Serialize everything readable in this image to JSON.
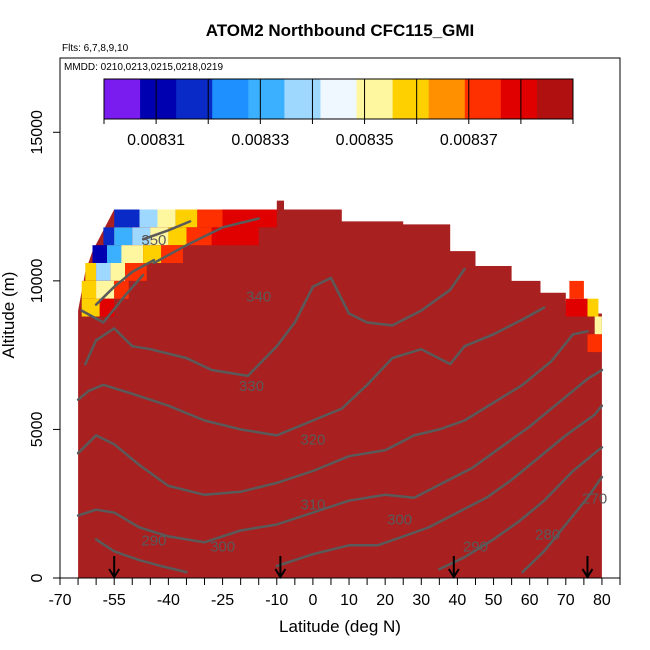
{
  "chart_data": {
    "type": "heatmap",
    "title": "ATOM2 Northbound CFC115_GMI",
    "flights_note": "Flts: 6,7,8,9,10",
    "dates_note": "MMDD: 0210,0213,0215,0218,0219",
    "xlabel": "Latitude (deg N)",
    "ylabel": "Altitude (m)",
    "xlim": [
      -70,
      85
    ],
    "ylim": [
      0,
      17500
    ],
    "x_ticks_major": [
      -70,
      -55,
      -40,
      -25,
      -10,
      0,
      10,
      20,
      30,
      40,
      50,
      60,
      70,
      80
    ],
    "x_tick_labels": [
      "-70",
      "-55",
      "-40",
      "-25",
      "-10",
      "0",
      "10",
      "20",
      "30",
      "40",
      "50",
      "60",
      "70",
      "80"
    ],
    "x_ticks_minor": [
      -65,
      -60,
      -50,
      -45,
      -35,
      -30,
      -20,
      -15,
      -5,
      5,
      15,
      25,
      35,
      45,
      55,
      65,
      75,
      85
    ],
    "y_ticks": [
      0,
      5000,
      10000,
      15000
    ],
    "y_tick_labels": [
      "0",
      "5000",
      "10000",
      "15000"
    ],
    "colorbar": {
      "range": [
        0.0083,
        0.00839
      ],
      "tick_values": [
        0.00831,
        0.00833,
        0.00835,
        0.00837
      ],
      "tick_labels": [
        "0.00831",
        "0.00833",
        "0.00835",
        "0.00837"
      ],
      "colors": [
        "#7a1cf0",
        "#0000b0",
        "#0a2ac8",
        "#1e90ff",
        "#3ab0ff",
        "#9fd8ff",
        "#f0f8ff",
        "#fff7a0",
        "#ffd000",
        "#ff9000",
        "#ff3000",
        "#e00000",
        "#b01010"
      ]
    },
    "field_color": "#a82020",
    "sounding_markers_lat": [
      -55,
      -9,
      39,
      76
    ],
    "contour_labels": [
      {
        "text": "350",
        "lat": -44,
        "alt": 11200
      },
      {
        "text": "340",
        "lat": -15,
        "alt": 9300
      },
      {
        "text": "330",
        "lat": -17,
        "alt": 6300
      },
      {
        "text": "320",
        "lat": 0,
        "alt": 4500
      },
      {
        "text": "310",
        "lat": 0,
        "alt": 2300
      },
      {
        "text": "300",
        "lat": 24,
        "alt": 1800
      },
      {
        "text": "300",
        "lat": -25,
        "alt": 900
      },
      {
        "text": "290",
        "lat": -44,
        "alt": 1100
      },
      {
        "text": "290",
        "lat": 45,
        "alt": 900
      },
      {
        "text": "280",
        "lat": 65,
        "alt": 1300
      },
      {
        "text": "270",
        "lat": 78,
        "alt": 2500
      }
    ],
    "colored_cells": [
      {
        "lat0": -55,
        "lat1": -48,
        "alt0": 11800,
        "alt1": 12400,
        "v": 0.00832
      },
      {
        "lat0": -48,
        "lat1": -43,
        "alt0": 11800,
        "alt1": 12400,
        "v": 0.00834
      },
      {
        "lat0": -43,
        "lat1": -38,
        "alt0": 11800,
        "alt1": 12400,
        "v": 0.00835
      },
      {
        "lat0": -38,
        "lat1": -32,
        "alt0": 11800,
        "alt1": 12400,
        "v": 0.00836
      },
      {
        "lat0": -32,
        "lat1": -25,
        "alt0": 11800,
        "alt1": 12400,
        "v": 0.00837
      },
      {
        "lat0": -58,
        "lat1": -55,
        "alt0": 11200,
        "alt1": 11800,
        "v": 0.00832
      },
      {
        "lat0": -55,
        "lat1": -50,
        "alt0": 11200,
        "alt1": 11800,
        "v": 0.00833
      },
      {
        "lat0": -50,
        "lat1": -45,
        "alt0": 11200,
        "alt1": 11800,
        "v": 0.00834
      },
      {
        "lat0": -45,
        "lat1": -40,
        "alt0": 11200,
        "alt1": 11800,
        "v": 0.00835
      },
      {
        "lat0": -40,
        "lat1": -35,
        "alt0": 11200,
        "alt1": 11800,
        "v": 0.00836
      },
      {
        "lat0": -35,
        "lat1": -28,
        "alt0": 11200,
        "alt1": 11800,
        "v": 0.00837
      },
      {
        "lat0": -61,
        "lat1": -57,
        "alt0": 10600,
        "alt1": 11200,
        "v": 0.00831
      },
      {
        "lat0": -57,
        "lat1": -53,
        "alt0": 10600,
        "alt1": 11200,
        "v": 0.00833
      },
      {
        "lat0": -53,
        "lat1": -47,
        "alt0": 10600,
        "alt1": 11200,
        "v": 0.00835
      },
      {
        "lat0": -47,
        "lat1": -42,
        "alt0": 10600,
        "alt1": 11200,
        "v": 0.00836
      },
      {
        "lat0": -42,
        "lat1": -36,
        "alt0": 10600,
        "alt1": 11200,
        "v": 0.00837
      },
      {
        "lat0": -63,
        "lat1": -60,
        "alt0": 10000,
        "alt1": 10600,
        "v": 0.00836
      },
      {
        "lat0": -60,
        "lat1": -56,
        "alt0": 10000,
        "alt1": 10600,
        "v": 0.00834
      },
      {
        "lat0": -56,
        "lat1": -52,
        "alt0": 10000,
        "alt1": 10600,
        "v": 0.00835
      },
      {
        "lat0": -52,
        "lat1": -46,
        "alt0": 10000,
        "alt1": 10600,
        "v": 0.00837
      },
      {
        "lat0": -64,
        "lat1": -60,
        "alt0": 9400,
        "alt1": 10000,
        "v": 0.00836
      },
      {
        "lat0": -60,
        "lat1": -55,
        "alt0": 9400,
        "alt1": 10000,
        "v": 0.00835
      },
      {
        "lat0": -55,
        "lat1": -51,
        "alt0": 9400,
        "alt1": 10000,
        "v": 0.00837
      },
      {
        "lat0": -64,
        "lat1": -59,
        "alt0": 8800,
        "alt1": 9400,
        "v": 0.00836
      },
      {
        "lat0": -59,
        "lat1": -55,
        "alt0": 8800,
        "alt1": 9400,
        "v": 0.00838
      },
      {
        "lat0": -25,
        "lat1": -10,
        "alt0": 11800,
        "alt1": 12400,
        "v": 0.00838
      },
      {
        "lat0": -28,
        "lat1": -15,
        "alt0": 11200,
        "alt1": 11800,
        "v": 0.00838
      },
      {
        "lat0": 71,
        "lat1": 75,
        "alt0": 9400,
        "alt1": 10000,
        "v": 0.00837
      },
      {
        "lat0": 75,
        "lat1": 79,
        "alt0": 8800,
        "alt1": 9400,
        "v": 0.00836
      },
      {
        "lat0": 78,
        "lat1": 80,
        "alt0": 8200,
        "alt1": 8800,
        "v": 0.00835
      },
      {
        "lat0": 76,
        "lat1": 80,
        "alt0": 7600,
        "alt1": 8200,
        "v": 0.00837
      },
      {
        "lat0": 70,
        "lat1": 76,
        "alt0": 8800,
        "alt1": 9400,
        "v": 0.00838
      }
    ]
  }
}
